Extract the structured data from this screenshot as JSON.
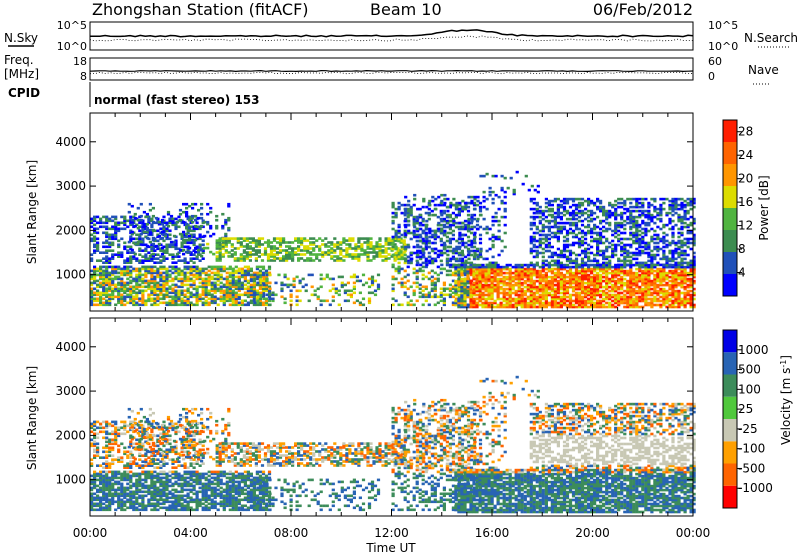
{
  "header": {
    "station": "Zhongshan Station (fitACF)",
    "beam": "Beam 10",
    "date": "06/Feb/2012"
  },
  "noise_panel": {
    "left_label": "N.Sky",
    "right_label": "N.Search",
    "left_ticks": [
      "10^5",
      "10^0"
    ],
    "right_ticks": [
      "10^5",
      "10^0"
    ]
  },
  "freq_panel": {
    "left_label_1": "Freq.",
    "left_label_2": "[MHz]",
    "right_label": "Nave",
    "left_ticks": [
      "18",
      "8"
    ],
    "right_ticks": [
      "60",
      "0"
    ]
  },
  "cpid": {
    "label": "CPID",
    "mode": "normal (fast stereo) 153"
  },
  "x_axis": {
    "label": "Time UT",
    "ticks": [
      "00:00",
      "04:00",
      "08:00",
      "12:00",
      "16:00",
      "20:00",
      "00:00"
    ]
  },
  "colors": {
    "power": [
      "#0000ff",
      "#2050b8",
      "#3c8c50",
      "#50b440",
      "#dcdc00",
      "#ff9600",
      "#ff6400",
      "#ff1e00"
    ],
    "velocity": [
      "#ff0000",
      "#ff6400",
      "#ffa000",
      "#c8c8b4",
      "#50c83c",
      "#3c8c5a",
      "#2864b4",
      "#0000e6"
    ]
  },
  "chart_data": [
    {
      "type": "heatmap",
      "ylabel": "Slant Range [km]",
      "xlabel": "",
      "x_ticks": [
        "00:00",
        "04:00",
        "08:00",
        "12:00",
        "16:00",
        "20:00",
        "00:00"
      ],
      "y_ticks": [
        "1000",
        "2000",
        "3000",
        "4000"
      ],
      "ylim": [
        180,
        4650
      ],
      "xlim_hours": [
        0,
        24
      ],
      "colorbar": {
        "label": "Power [dB]",
        "ticks": [
          "4",
          "8",
          "12",
          "16",
          "20",
          "24",
          "28"
        ],
        "range": [
          0,
          30
        ]
      }
    },
    {
      "type": "heatmap",
      "ylabel": "Slant Range [km]",
      "xlabel": "Time UT",
      "x_ticks": [
        "00:00",
        "04:00",
        "08:00",
        "12:00",
        "16:00",
        "20:00",
        "00:00"
      ],
      "y_ticks": [
        "1000",
        "2000",
        "3000",
        "4000"
      ],
      "ylim": [
        180,
        4650
      ],
      "xlim_hours": [
        0,
        24
      ],
      "colorbar": {
        "label": "Velocity [m s^-1]",
        "ticks": [
          "1000",
          "500",
          "100",
          "25",
          "-25",
          "-100",
          "-500",
          "-1000"
        ]
      }
    }
  ]
}
